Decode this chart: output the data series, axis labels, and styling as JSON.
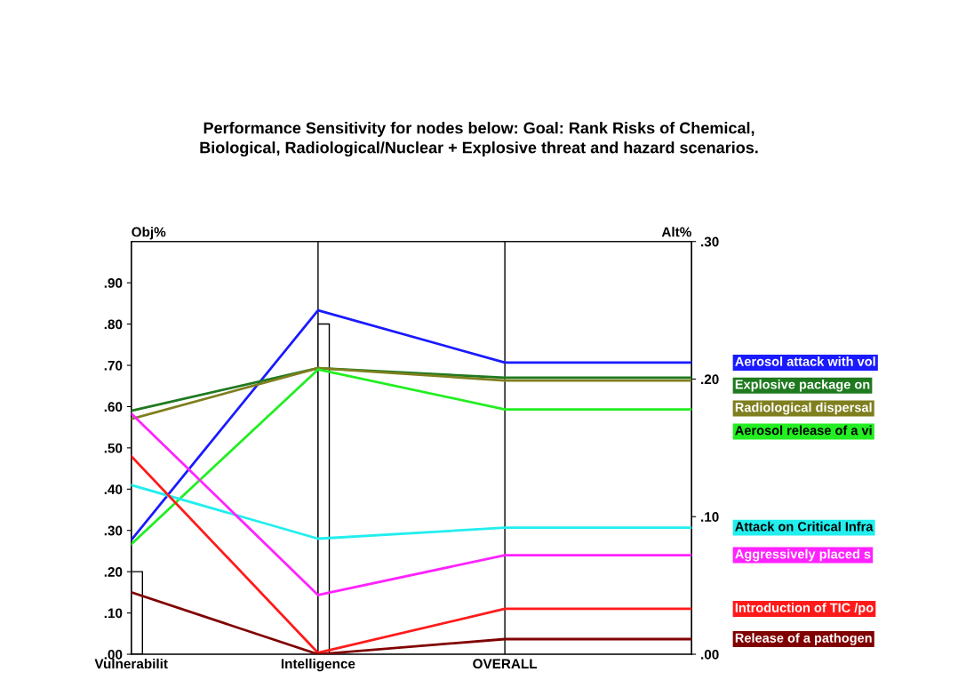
{
  "chart_data": {
    "type": "line",
    "title": "Performance Sensitivity for nodes below: Goal: Rank Risks of Chemical,\nBiological, Radiological/Nuclear + Explosive threat and hazard scenarios.",
    "ylabel": "Obj%",
    "y2label": "Alt%",
    "categories": [
      "Vulnerabilit",
      "Intelligence",
      "OVERALL",
      null
    ],
    "ylim": [
      0,
      1.0
    ],
    "yticks": [
      {
        "value": 0,
        "label": ".00"
      },
      {
        "value": 0.1,
        "label": ".10"
      },
      {
        "value": 0.2,
        "label": ".20"
      },
      {
        "value": 0.3,
        "label": ".30"
      },
      {
        "value": 0.4,
        "label": ".40"
      },
      {
        "value": 0.5,
        "label": ".50"
      },
      {
        "value": 0.6,
        "label": ".60"
      },
      {
        "value": 0.7,
        "label": ".70"
      },
      {
        "value": 0.8,
        "label": ".80"
      },
      {
        "value": 0.9,
        "label": ".90"
      }
    ],
    "y2lim": [
      0,
      0.3
    ],
    "y2ticks": [
      {
        "value": 0,
        "label": ".00"
      },
      {
        "value": 0.1,
        "label": ".10"
      },
      {
        "value": 0.2,
        "label": ".20"
      },
      {
        "value": 0.3,
        "label": ".30"
      }
    ],
    "grid": "x",
    "marker": "none",
    "series": [
      {
        "type": "bar",
        "color": "#ffffff",
        "values": [
          0.2,
          0.8,
          null,
          null
        ]
      },
      {
        "name": "Aerosol attack with vol",
        "color": "#1a1aff",
        "axis": "y2",
        "values": [
          0.083,
          0.25,
          0.212,
          0.212
        ]
      },
      {
        "name": "Explosive package on",
        "color": "#1f7a1f",
        "axis": "y2",
        "values": [
          0.177,
          0.208,
          0.201,
          0.201
        ]
      },
      {
        "name": "Radiological dispersal",
        "color": "#7f7f1f",
        "axis": "y2",
        "values": [
          0.171,
          0.208,
          0.199,
          0.199
        ]
      },
      {
        "name": "Aerosol release of a vi",
        "color": "#22ee22",
        "axis": "y2",
        "values": [
          0.08,
          0.207,
          0.178,
          0.178
        ]
      },
      {
        "name": "Attack on Critical Infra",
        "color": "#22eeee",
        "axis": "y2",
        "values": [
          0.123,
          0.084,
          0.092,
          0.092
        ]
      },
      {
        "name": "Aggressively placed s",
        "color": "#ff22ff",
        "axis": "y2",
        "values": [
          0.175,
          0.043,
          0.072,
          0.072
        ]
      },
      {
        "name": "Introduction of TIC /po",
        "color": "#ff1a1a",
        "axis": "y2",
        "values": [
          0.144,
          0.001,
          0.033,
          0.033
        ]
      },
      {
        "name": "Release of a pathogen",
        "color": "#800000",
        "axis": "y2",
        "values": [
          0.045,
          0.0,
          0.011,
          0.011
        ]
      }
    ]
  }
}
